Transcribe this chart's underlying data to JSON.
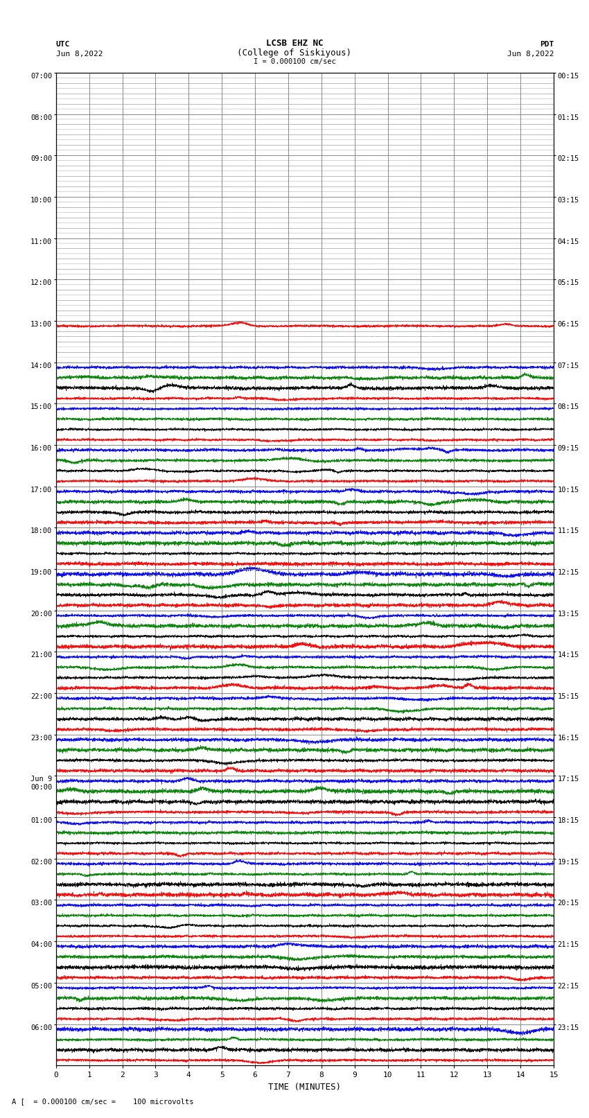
{
  "title_line1": "LCSB EHZ NC",
  "title_line2": "(College of Siskiyous)",
  "scale_label": "I = 0.000100 cm/sec",
  "left_label": "UTC",
  "left_date": "Jun 8,2022",
  "right_label": "PDT",
  "right_date": "Jun 8,2022",
  "xlabel": "TIME (MINUTES)",
  "bottom_note": "A [  = 0.000100 cm/sec =    100 microvolts",
  "utc_times": [
    "07:00",
    "08:00",
    "09:00",
    "10:00",
    "11:00",
    "12:00",
    "13:00",
    "14:00",
    "15:00",
    "16:00",
    "17:00",
    "18:00",
    "19:00",
    "20:00",
    "21:00",
    "22:00",
    "23:00",
    "Jun 9\n00:00",
    "01:00",
    "02:00",
    "03:00",
    "04:00",
    "05:00",
    "06:00"
  ],
  "pdt_times": [
    "00:15",
    "01:15",
    "02:15",
    "03:15",
    "04:15",
    "05:15",
    "06:15",
    "07:15",
    "08:15",
    "09:15",
    "10:15",
    "11:15",
    "12:15",
    "13:15",
    "14:15",
    "15:15",
    "16:15",
    "17:15",
    "18:15",
    "19:15",
    "20:15",
    "21:15",
    "22:15",
    "23:15"
  ],
  "n_total_bands": 24,
  "n_quiet_bands": 7,
  "traces_per_band": 4,
  "bg_color": "#ffffff",
  "grid_color": "#888888",
  "quiet_colors": [
    "black",
    "black",
    "black",
    "black"
  ],
  "active_colors": [
    "blue",
    "green",
    "black",
    "red"
  ],
  "transition_color": "red",
  "figsize": [
    8.5,
    16.13
  ],
  "dpi": 100,
  "xmin": 0,
  "xmax": 15
}
